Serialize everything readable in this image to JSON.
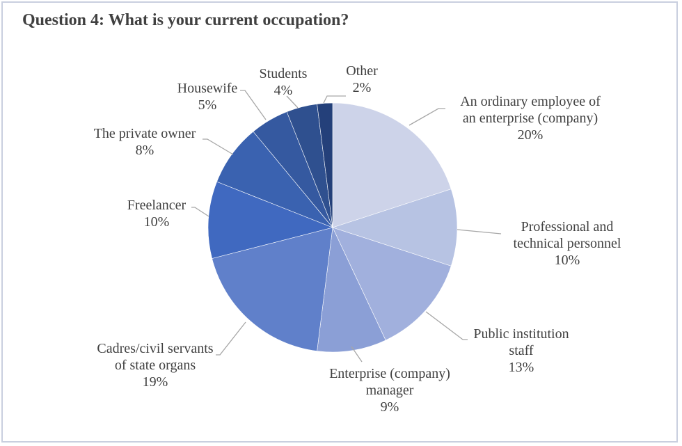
{
  "chart_data": {
    "type": "pie",
    "title": "Question 4: What is your current occupation?",
    "slices": [
      {
        "label": [
          "An ordinary employee of",
          "an enterprise (company)"
        ],
        "value_label": "20%",
        "value": 20,
        "color": "#cdd3e9"
      },
      {
        "label": [
          "Professional and",
          "technical personnel"
        ],
        "value_label": "10%",
        "value": 10,
        "color": "#b7c3e3"
      },
      {
        "label": [
          "Public institution",
          "staff"
        ],
        "value_label": "13%",
        "value": 13,
        "color": "#a1b0dd"
      },
      {
        "label": [
          "Enterprise (company)",
          "manager"
        ],
        "value_label": "9%",
        "value": 9,
        "color": "#8b9fd6"
      },
      {
        "label": [
          "Cadres/civil servants",
          "of state organs"
        ],
        "value_label": "19%",
        "value": 19,
        "color": "#6080ca"
      },
      {
        "label": [
          "Freelancer"
        ],
        "value_label": "10%",
        "value": 10,
        "color": "#4069c0"
      },
      {
        "label": [
          "The private owner"
        ],
        "value_label": "8%",
        "value": 8,
        "color": "#3a62b0"
      },
      {
        "label": [
          "Housewife"
        ],
        "value_label": "5%",
        "value": 5,
        "color": "#3559a0"
      },
      {
        "label": [
          "Students"
        ],
        "value_label": "4%",
        "value": 4,
        "color": "#2f508f"
      },
      {
        "label": [
          "Other"
        ],
        "value_label": "2%",
        "value": 2,
        "color": "#24407a"
      }
    ]
  }
}
